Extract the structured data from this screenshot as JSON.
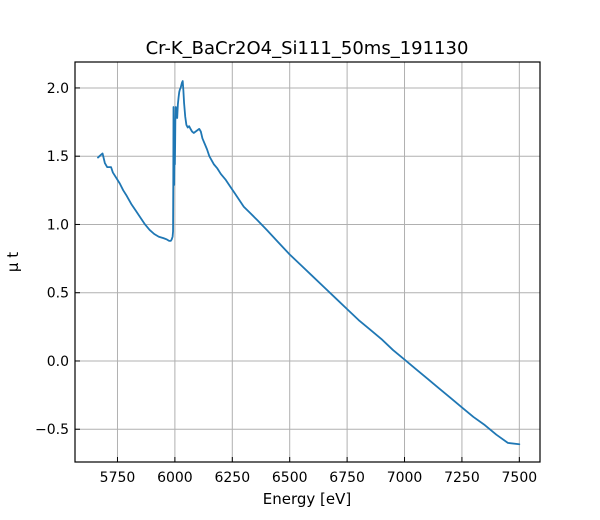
{
  "chart_data": {
    "type": "line",
    "title": "Cr-K_BaCr2O4_Si111_50ms_191130",
    "xlabel": "Energy [eV]",
    "ylabel": "μ t",
    "xlim": [
      5565,
      7590
    ],
    "ylim": [
      -0.74,
      2.19
    ],
    "xticks": [
      5750,
      6000,
      6250,
      6500,
      6750,
      7000,
      7250,
      7500
    ],
    "xtick_labels": [
      "5750",
      "6000",
      "6250",
      "6500",
      "6750",
      "7000",
      "7250",
      "7500"
    ],
    "yticks": [
      -0.5,
      0.0,
      0.5,
      1.0,
      1.5,
      2.0
    ],
    "ytick_labels": [
      "−0.5",
      "0.0",
      "0.5",
      "1.0",
      "1.5",
      "2.0"
    ],
    "grid": true,
    "legend": "none",
    "tick_direction": "in",
    "series": [
      {
        "color": "#1f77b4",
        "x": [
          5665,
          5678,
          5685,
          5695,
          5705,
          5715,
          5722,
          5730,
          5745,
          5760,
          5775,
          5790,
          5810,
          5830,
          5850,
          5870,
          5890,
          5910,
          5930,
          5950,
          5965,
          5975,
          5982,
          5986,
          5990,
          5992,
          5993,
          5994,
          5995,
          5996,
          5997,
          5998,
          5999,
          6000,
          6001,
          6002,
          6004,
          6007,
          6010,
          6013,
          6016,
          6019,
          6022,
          6025,
          6028,
          6031,
          6034,
          6037,
          6040,
          6045,
          6050,
          6056,
          6062,
          6068,
          6075,
          6082,
          6090,
          6098,
          6106,
          6113,
          6120,
          6130,
          6140,
          6150,
          6160,
          6170,
          6185,
          6200,
          6220,
          6240,
          6260,
          6280,
          6300,
          6330,
          6360,
          6400,
          6450,
          6500,
          6550,
          6600,
          6650,
          6700,
          6750,
          6800,
          6850,
          6900,
          6950,
          7000,
          7050,
          7100,
          7150,
          7200,
          7250,
          7300,
          7350,
          7400,
          7450,
          7500
        ],
        "y": [
          1.49,
          1.51,
          1.52,
          1.45,
          1.42,
          1.42,
          1.42,
          1.38,
          1.34,
          1.3,
          1.25,
          1.21,
          1.15,
          1.1,
          1.05,
          1.0,
          0.96,
          0.93,
          0.91,
          0.9,
          0.89,
          0.88,
          0.88,
          0.89,
          0.91,
          0.95,
          1.3,
          1.86,
          1.35,
          1.55,
          1.29,
          1.46,
          1.51,
          1.44,
          1.58,
          1.76,
          1.86,
          1.82,
          1.78,
          1.88,
          1.93,
          1.97,
          1.99,
          2.0,
          2.02,
          2.04,
          2.05,
          1.98,
          1.89,
          1.79,
          1.73,
          1.71,
          1.72,
          1.7,
          1.68,
          1.67,
          1.68,
          1.69,
          1.7,
          1.68,
          1.63,
          1.59,
          1.55,
          1.5,
          1.47,
          1.44,
          1.41,
          1.37,
          1.33,
          1.28,
          1.23,
          1.18,
          1.13,
          1.08,
          1.03,
          0.96,
          0.87,
          0.78,
          0.7,
          0.62,
          0.54,
          0.46,
          0.38,
          0.3,
          0.23,
          0.16,
          0.08,
          0.01,
          -0.06,
          -0.13,
          -0.2,
          -0.27,
          -0.34,
          -0.41,
          -0.47,
          -0.54,
          -0.6,
          -0.61
        ]
      }
    ]
  }
}
